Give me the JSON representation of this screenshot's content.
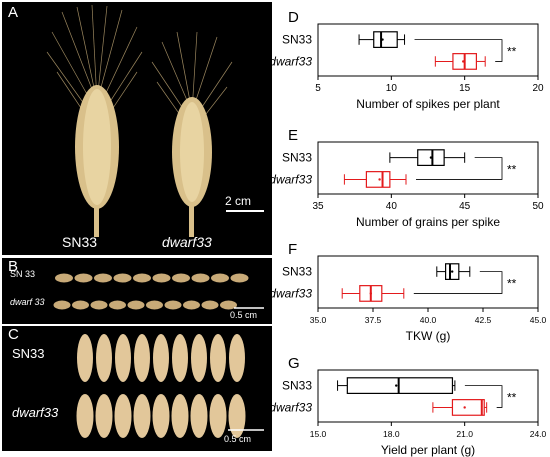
{
  "photos": {
    "A": {
      "letter": "A",
      "label_left": "SN33",
      "label_right": "dwarf33",
      "scale": "2 cm"
    },
    "B": {
      "letter": "B",
      "label_top": "SN 33",
      "label_bottom": "dwarf 33",
      "scale": "0.5 cm"
    },
    "C": {
      "letter": "C",
      "label_top": "SN33",
      "label_bottom": "dwarf33",
      "scale": "0.5 cm"
    }
  },
  "chart_data": [
    {
      "letter": "D",
      "type": "boxplot",
      "xlabel": "Number of spikes per plant",
      "categories": [
        "SN33",
        "dwarf33"
      ],
      "xlim": [
        5,
        20
      ],
      "ticks": [
        "5",
        "10",
        "15",
        "20"
      ],
      "significance": "**",
      "series": [
        {
          "name": "SN33",
          "color": "#000000",
          "min": 7.8,
          "q1": 8.8,
          "median": 9.3,
          "q3": 10.4,
          "max": 10.9,
          "mean": 9.4
        },
        {
          "name": "dwarf33",
          "color": "#e31a1c",
          "min": 13.0,
          "q1": 14.2,
          "median": 15.0,
          "q3": 15.8,
          "max": 16.4,
          "mean": 14.9
        }
      ]
    },
    {
      "letter": "E",
      "type": "boxplot",
      "xlabel": "Number of grains per spike",
      "categories": [
        "SN33",
        "dwarf33"
      ],
      "xlim": [
        35,
        50
      ],
      "ticks": [
        "35",
        "40",
        "45",
        "50"
      ],
      "significance": "**",
      "series": [
        {
          "name": "SN33",
          "color": "#000000",
          "min": 39.9,
          "q1": 41.8,
          "median": 42.8,
          "q3": 43.6,
          "max": 45.0,
          "mean": 42.7
        },
        {
          "name": "dwarf33",
          "color": "#e31a1c",
          "min": 36.8,
          "q1": 38.3,
          "median": 39.4,
          "q3": 39.9,
          "max": 41.0,
          "mean": 39.2
        }
      ]
    },
    {
      "letter": "F",
      "type": "boxplot",
      "xlabel": "TKW (g)",
      "categories": [
        "SN33",
        "dwarf33"
      ],
      "xlim": [
        35,
        45
      ],
      "ticks": [
        "35.0",
        "37.5",
        "40.0",
        "42.5",
        "45.0"
      ],
      "significance": "**",
      "series": [
        {
          "name": "SN33",
          "color": "#000000",
          "min": 40.4,
          "q1": 40.8,
          "median": 41.0,
          "q3": 41.4,
          "max": 41.9,
          "mean": 41.1
        },
        {
          "name": "dwarf33",
          "color": "#e31a1c",
          "min": 36.1,
          "q1": 36.9,
          "median": 37.4,
          "q3": 37.9,
          "max": 38.9,
          "mean": 37.4
        }
      ]
    },
    {
      "letter": "G",
      "type": "boxplot",
      "xlabel": "Yield per plant (g)",
      "categories": [
        "SN33",
        "dwarf33"
      ],
      "xlim": [
        15,
        24
      ],
      "ticks": [
        "15.0",
        "18.0",
        "21.0",
        "24.0"
      ],
      "significance": "**",
      "series": [
        {
          "name": "SN33",
          "color": "#000000",
          "min": 15.8,
          "q1": 16.2,
          "median": 18.3,
          "q3": 20.5,
          "max": 20.6,
          "mean": 18.2
        },
        {
          "name": "dwarf33",
          "color": "#e31a1c",
          "min": 19.7,
          "q1": 20.5,
          "median": 21.7,
          "q3": 21.8,
          "max": 21.9,
          "mean": 21.0
        }
      ]
    }
  ]
}
